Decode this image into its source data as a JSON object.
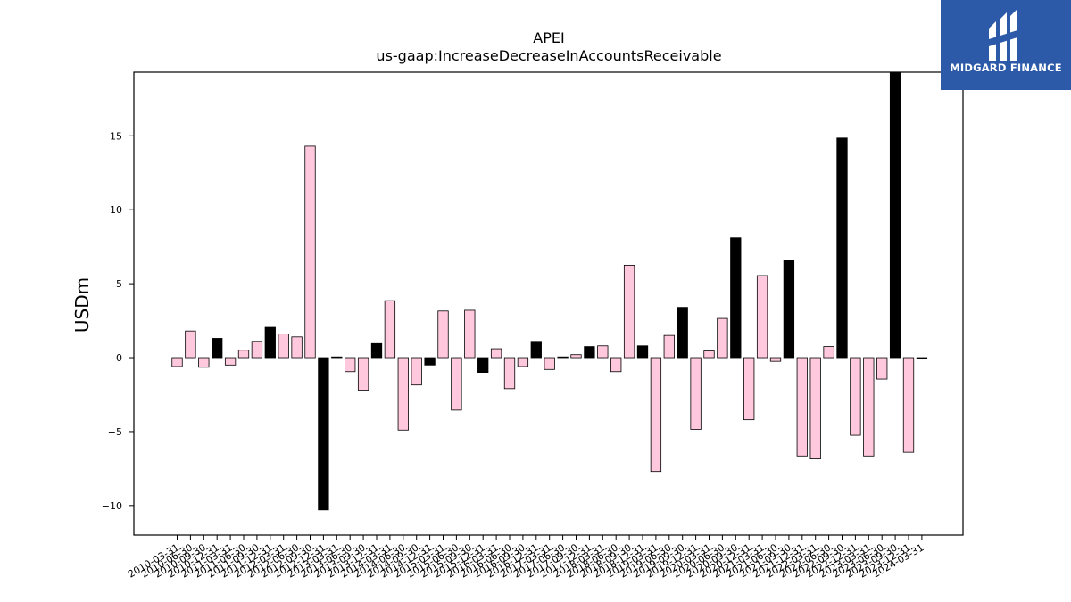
{
  "brand": {
    "name": "MIDGARD FINANCE",
    "logo_icon": "midgard-logo-icon",
    "color": "#2d5aa8"
  },
  "chart_data": {
    "type": "bar",
    "title": "APEI",
    "subtitle": "us-gaap:IncreaseDecreaseInAccountsReceivable",
    "xlabel": "",
    "ylabel": "USDm",
    "ylim": [
      -12,
      19.3
    ],
    "yticks": [
      -10,
      -5,
      0,
      5,
      10,
      15
    ],
    "ytick_labels": [
      "−10",
      "−5",
      "0",
      "5",
      "10",
      "15"
    ],
    "grid": false,
    "colors": {
      "positive_period_fill": "#000000",
      "default_fill": "#ffc8dd",
      "edge": "#000000"
    },
    "categories": [
      "2010-03-31",
      "2010-06-30",
      "2010-09-30",
      "2010-12-31",
      "2011-03-31",
      "2011-06-30",
      "2011-09-30",
      "2011-12-31",
      "2012-03-31",
      "2012-06-30",
      "2012-09-30",
      "2012-12-31",
      "2013-03-31",
      "2013-06-30",
      "2013-09-30",
      "2013-12-31",
      "2014-03-31",
      "2014-06-30",
      "2014-09-30",
      "2014-12-31",
      "2015-03-31",
      "2015-06-30",
      "2015-09-30",
      "2015-12-31",
      "2016-03-31",
      "2016-06-30",
      "2016-09-30",
      "2016-12-31",
      "2017-03-31",
      "2017-06-30",
      "2017-09-30",
      "2017-12-31",
      "2018-03-31",
      "2018-06-30",
      "2018-09-30",
      "2018-12-31",
      "2019-03-31",
      "2019-06-30",
      "2019-09-30",
      "2019-12-31",
      "2020-03-31",
      "2020-06-30",
      "2020-09-30",
      "2020-12-31",
      "2021-03-31",
      "2021-06-30",
      "2021-09-30",
      "2021-12-31",
      "2022-03-31",
      "2022-06-30",
      "2022-09-30",
      "2022-12-31",
      "2023-03-31",
      "2023-06-30",
      "2023-09-30",
      "2023-12-31",
      "2024-03-31"
    ],
    "values": [
      -0.6,
      1.8,
      -0.65,
      1.3,
      -0.5,
      0.5,
      1.1,
      2.05,
      1.6,
      1.4,
      14.3,
      -10.3,
      0.05,
      -0.95,
      -2.2,
      0.95,
      3.85,
      -4.9,
      -1.85,
      -0.5,
      3.15,
      -3.55,
      3.2,
      -1.0,
      0.6,
      -2.1,
      -0.6,
      1.1,
      -0.8,
      0.05,
      0.2,
      0.75,
      0.8,
      -0.95,
      6.25,
      0.8,
      -7.7,
      1.5,
      3.4,
      -4.85,
      0.45,
      2.65,
      8.1,
      -4.2,
      5.55,
      -0.25,
      6.55,
      -6.65,
      -6.85,
      0.75,
      14.85,
      -5.25,
      -6.65,
      -1.45,
      19.3,
      -6.4,
      0
    ],
    "highlight": [
      false,
      false,
      false,
      true,
      false,
      false,
      false,
      true,
      false,
      false,
      false,
      true,
      true,
      false,
      false,
      true,
      false,
      false,
      false,
      true,
      false,
      false,
      false,
      true,
      false,
      false,
      false,
      true,
      false,
      false,
      false,
      true,
      false,
      false,
      false,
      true,
      false,
      false,
      true,
      false,
      false,
      false,
      true,
      false,
      false,
      false,
      true,
      false,
      false,
      false,
      true,
      false,
      false,
      false,
      true,
      false,
      false
    ]
  }
}
